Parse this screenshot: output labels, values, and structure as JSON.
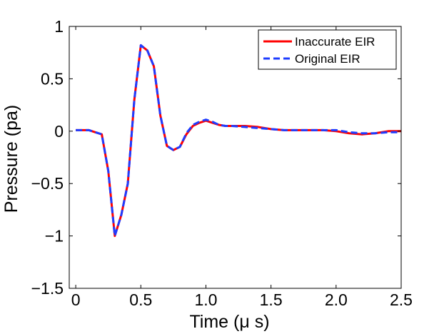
{
  "chart_data": {
    "type": "line",
    "xlabel": "Time (μ s)",
    "ylabel": "Pressure (pa)",
    "xlim": [
      -0.05,
      2.5
    ],
    "ylim": [
      -1.5,
      1
    ],
    "xticks": [
      0,
      0.5,
      1,
      1.5,
      2,
      2.5
    ],
    "xtick_labels": [
      "0",
      "0.5",
      "1.0",
      "1.5",
      "2.0",
      "2.5"
    ],
    "yticks": [
      -1.5,
      -1,
      -0.5,
      0,
      0.5,
      1
    ],
    "ytick_labels": [
      "−1.5",
      "−1",
      "−0.5",
      "0",
      "0.5",
      "1"
    ],
    "grid": false,
    "legend_position": "top-right",
    "series": [
      {
        "name": "Inaccurate EIR",
        "color": "#ff0000",
        "style": "solid",
        "x": [
          0,
          0.05,
          0.1,
          0.15,
          0.2,
          0.25,
          0.3,
          0.35,
          0.4,
          0.45,
          0.5,
          0.55,
          0.6,
          0.65,
          0.7,
          0.75,
          0.8,
          0.85,
          0.9,
          0.95,
          1.0,
          1.05,
          1.1,
          1.15,
          1.2,
          1.3,
          1.4,
          1.5,
          1.6,
          1.7,
          1.8,
          1.9,
          2.0,
          2.1,
          2.2,
          2.3,
          2.4,
          2.5
        ],
        "y": [
          0.01,
          0.01,
          0.01,
          -0.01,
          -0.03,
          -0.38,
          -1.0,
          -0.8,
          -0.5,
          0.3,
          0.82,
          0.77,
          0.62,
          0.15,
          -0.14,
          -0.18,
          -0.15,
          -0.03,
          0.05,
          0.08,
          0.1,
          0.08,
          0.06,
          0.05,
          0.05,
          0.05,
          0.04,
          0.02,
          0.01,
          0.01,
          0.01,
          0.01,
          0.0,
          -0.02,
          -0.03,
          -0.02,
          0.0,
          0.0
        ]
      },
      {
        "name": "Original EIR",
        "color": "#1e3cff",
        "style": "dashed",
        "x": [
          0,
          0.05,
          0.1,
          0.15,
          0.2,
          0.25,
          0.3,
          0.35,
          0.4,
          0.45,
          0.5,
          0.55,
          0.6,
          0.65,
          0.7,
          0.75,
          0.8,
          0.85,
          0.9,
          0.95,
          1.0,
          1.05,
          1.1,
          1.15,
          1.2,
          1.3,
          1.4,
          1.5,
          1.6,
          1.7,
          1.8,
          1.9,
          2.0,
          2.1,
          2.2,
          2.3,
          2.4,
          2.5
        ],
        "y": [
          0.01,
          0.01,
          0.01,
          -0.01,
          -0.03,
          -0.38,
          -1.0,
          -0.8,
          -0.5,
          0.3,
          0.82,
          0.77,
          0.62,
          0.15,
          -0.14,
          -0.18,
          -0.15,
          -0.02,
          0.06,
          0.09,
          0.11,
          0.09,
          0.06,
          0.05,
          0.05,
          0.04,
          0.03,
          0.02,
          0.01,
          0.01,
          0.01,
          0.01,
          0.01,
          -0.01,
          -0.02,
          -0.02,
          -0.01,
          -0.01
        ]
      }
    ]
  }
}
